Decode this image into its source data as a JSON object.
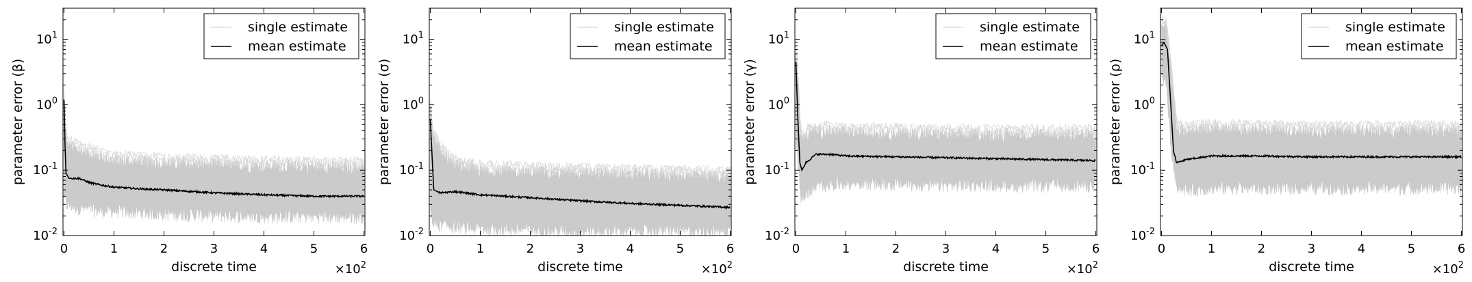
{
  "chart_data": [
    {
      "type": "line",
      "xlabel": "discrete time",
      "ylabel": "parameter error (β)",
      "x_multiplier_label": "×10",
      "x_multiplier_exp": "2",
      "xlim": [
        -0.02,
        6.02
      ],
      "ylim": [
        0.01,
        30
      ],
      "yscale": "log",
      "xticks": [
        0,
        1,
        2,
        3,
        4,
        5,
        6
      ],
      "xtick_labels": [
        "0",
        "1",
        "2",
        "3",
        "4",
        "5",
        "6"
      ],
      "ytick_labels": [
        {
          "base": "10",
          "exp": "-2",
          "value": 0.01
        },
        {
          "base": "10",
          "exp": "-1",
          "value": 0.1
        },
        {
          "base": "10",
          "exp": "0",
          "value": 1
        },
        {
          "base": "10",
          "exp": "1",
          "value": 10
        }
      ],
      "legend_position": "top-right",
      "series": [
        {
          "name": "single estimate",
          "color": "#c8c8c8",
          "band": true,
          "lower": [
            [
              0,
              0.04
            ],
            [
              0.05,
              0.03
            ],
            [
              0.5,
              0.025
            ],
            [
              2,
              0.022
            ],
            [
              4,
              0.02
            ],
            [
              6,
              0.02
            ]
          ],
          "upper": [
            [
              0,
              1.2
            ],
            [
              0.05,
              0.25
            ],
            [
              0.3,
              0.2
            ],
            [
              1,
              0.14
            ],
            [
              3,
              0.12
            ],
            [
              6,
              0.11
            ]
          ]
        },
        {
          "name": "mean estimate",
          "color": "#000000",
          "points": [
            [
              0,
              1.2
            ],
            [
              0.02,
              0.25
            ],
            [
              0.04,
              0.09
            ],
            [
              0.1,
              0.075
            ],
            [
              0.3,
              0.075
            ],
            [
              0.5,
              0.065
            ],
            [
              0.7,
              0.06
            ],
            [
              1,
              0.055
            ],
            [
              1.5,
              0.052
            ],
            [
              2,
              0.05
            ],
            [
              3,
              0.045
            ],
            [
              4,
              0.042
            ],
            [
              5,
              0.04
            ],
            [
              6,
              0.04
            ]
          ]
        }
      ]
    },
    {
      "type": "line",
      "xlabel": "discrete time",
      "ylabel": "parameter error (σ)",
      "x_multiplier_label": "×10",
      "x_multiplier_exp": "2",
      "xlim": [
        -0.02,
        6.02
      ],
      "ylim": [
        0.01,
        30
      ],
      "yscale": "log",
      "xticks": [
        0,
        1,
        2,
        3,
        4,
        5,
        6
      ],
      "xtick_labels": [
        "0",
        "1",
        "2",
        "3",
        "4",
        "5",
        "6"
      ],
      "ytick_labels": [
        {
          "base": "10",
          "exp": "-2",
          "value": 0.01
        },
        {
          "base": "10",
          "exp": "-1",
          "value": 0.1
        },
        {
          "base": "10",
          "exp": "0",
          "value": 1
        },
        {
          "base": "10",
          "exp": "1",
          "value": 10
        }
      ],
      "legend_position": "top-right",
      "series": [
        {
          "name": "single estimate",
          "color": "#c8c8c8",
          "band": true,
          "lower": [
            [
              0,
              0.03
            ],
            [
              0.05,
              0.015
            ],
            [
              1,
              0.013
            ],
            [
              3,
              0.012
            ],
            [
              6,
              0.012
            ]
          ],
          "upper": [
            [
              0,
              0.9
            ],
            [
              0.05,
              0.35
            ],
            [
              0.2,
              0.2
            ],
            [
              0.5,
              0.12
            ],
            [
              1,
              0.1
            ],
            [
              3,
              0.09
            ],
            [
              6,
              0.08
            ]
          ]
        },
        {
          "name": "mean estimate",
          "color": "#000000",
          "points": [
            [
              0,
              0.6
            ],
            [
              0.03,
              0.2
            ],
            [
              0.07,
              0.05
            ],
            [
              0.2,
              0.045
            ],
            [
              0.5,
              0.047
            ],
            [
              1,
              0.042
            ],
            [
              2,
              0.038
            ],
            [
              3,
              0.034
            ],
            [
              4,
              0.031
            ],
            [
              5,
              0.029
            ],
            [
              6,
              0.027
            ]
          ]
        }
      ]
    },
    {
      "type": "line",
      "xlabel": "discrete time",
      "ylabel": "parameter error (γ)",
      "x_multiplier_label": "×10",
      "x_multiplier_exp": "2",
      "xlim": [
        -0.02,
        6.02
      ],
      "ylim": [
        0.01,
        30
      ],
      "yscale": "log",
      "xticks": [
        0,
        1,
        2,
        3,
        4,
        5,
        6
      ],
      "xtick_labels": [
        "0",
        "1",
        "2",
        "3",
        "4",
        "5",
        "6"
      ],
      "ytick_labels": [
        {
          "base": "10",
          "exp": "-2",
          "value": 0.01
        },
        {
          "base": "10",
          "exp": "-1",
          "value": 0.1
        },
        {
          "base": "10",
          "exp": "0",
          "value": 1
        },
        {
          "base": "10",
          "exp": "1",
          "value": 10
        }
      ],
      "legend_position": "top-right",
      "series": [
        {
          "name": "single estimate",
          "color": "#c8c8c8",
          "band": true,
          "lower": [
            [
              0,
              0.5
            ],
            [
              0.05,
              0.1
            ],
            [
              0.1,
              0.04
            ],
            [
              0.5,
              0.06
            ],
            [
              1,
              0.065
            ],
            [
              3,
              0.06
            ],
            [
              6,
              0.06
            ]
          ],
          "upper": [
            [
              0,
              6
            ],
            [
              0.05,
              2
            ],
            [
              0.1,
              0.3
            ],
            [
              0.3,
              0.4
            ],
            [
              1,
              0.38
            ],
            [
              3,
              0.35
            ],
            [
              6,
              0.35
            ]
          ]
        },
        {
          "name": "mean estimate",
          "color": "#000000",
          "points": [
            [
              0,
              4.5
            ],
            [
              0.04,
              0.6
            ],
            [
              0.08,
              0.13
            ],
            [
              0.12,
              0.1
            ],
            [
              0.2,
              0.13
            ],
            [
              0.4,
              0.175
            ],
            [
              0.7,
              0.175
            ],
            [
              1,
              0.165
            ],
            [
              2,
              0.16
            ],
            [
              3,
              0.155
            ],
            [
              4,
              0.15
            ],
            [
              5,
              0.145
            ],
            [
              6,
              0.14
            ]
          ]
        }
      ]
    },
    {
      "type": "line",
      "xlabel": "discrete time",
      "ylabel": "parameter error (ρ)",
      "x_multiplier_label": "×10",
      "x_multiplier_exp": "2",
      "xlim": [
        -0.02,
        6.02
      ],
      "ylim": [
        0.01,
        30
      ],
      "yscale": "log",
      "xticks": [
        0,
        1,
        2,
        3,
        4,
        5,
        6
      ],
      "xtick_labels": [
        "0",
        "1",
        "2",
        "3",
        "4",
        "5",
        "6"
      ],
      "ytick_labels": [
        {
          "base": "10",
          "exp": "-2",
          "value": 0.01
        },
        {
          "base": "10",
          "exp": "-1",
          "value": 0.1
        },
        {
          "base": "10",
          "exp": "0",
          "value": 1
        },
        {
          "base": "10",
          "exp": "1",
          "value": 10
        }
      ],
      "legend_position": "top-right",
      "series": [
        {
          "name": "single estimate",
          "color": "#c8c8c8",
          "band": true,
          "lower": [
            [
              0,
              3
            ],
            [
              0.1,
              2
            ],
            [
              0.2,
              0.2
            ],
            [
              0.3,
              0.06
            ],
            [
              0.5,
              0.05
            ],
            [
              1,
              0.055
            ],
            [
              3,
              0.055
            ],
            [
              6,
              0.055
            ]
          ],
          "upper": [
            [
              0,
              17
            ],
            [
              0.1,
              15
            ],
            [
              0.2,
              3
            ],
            [
              0.3,
              0.45
            ],
            [
              0.5,
              0.4
            ],
            [
              1,
              0.42
            ],
            [
              3,
              0.4
            ],
            [
              6,
              0.4
            ]
          ]
        },
        {
          "name": "mean estimate",
          "color": "#000000",
          "points": [
            [
              0,
              8
            ],
            [
              0.05,
              9
            ],
            [
              0.12,
              7
            ],
            [
              0.18,
              1.2
            ],
            [
              0.24,
              0.2
            ],
            [
              0.3,
              0.13
            ],
            [
              0.5,
              0.145
            ],
            [
              1,
              0.165
            ],
            [
              2,
              0.165
            ],
            [
              3,
              0.16
            ],
            [
              4,
              0.16
            ],
            [
              5,
              0.16
            ],
            [
              6,
              0.16
            ]
          ]
        }
      ]
    }
  ]
}
